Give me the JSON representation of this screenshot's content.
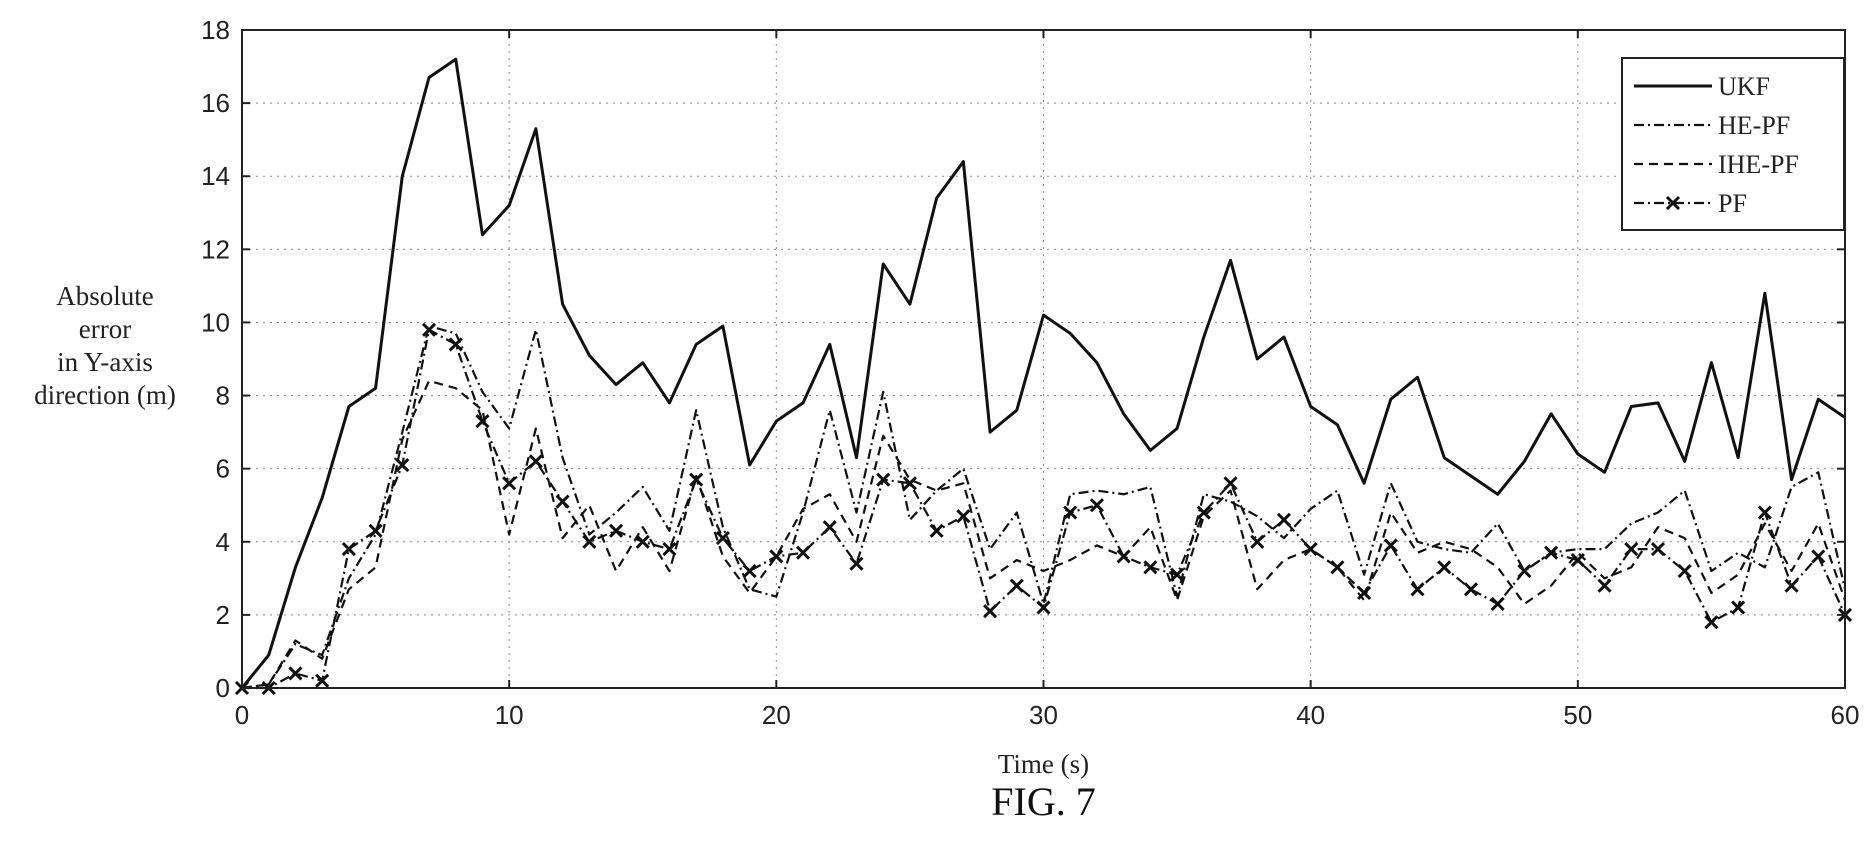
{
  "figure_caption": "FIG. 7",
  "chart_data": {
    "type": "line",
    "xlabel": "Time (s)",
    "ylabel": [
      "Absolute",
      "error",
      "in Y-axis",
      "direction (m)"
    ],
    "xlim": [
      0,
      60
    ],
    "ylim": [
      0,
      18
    ],
    "xticks": [
      0,
      10,
      20,
      30,
      40,
      50,
      60
    ],
    "yticks": [
      0,
      2,
      4,
      6,
      8,
      10,
      12,
      14,
      16,
      18
    ],
    "grid": true,
    "legend_position": "top-right",
    "x": [
      0,
      1,
      2,
      3,
      4,
      5,
      6,
      7,
      8,
      9,
      10,
      11,
      12,
      13,
      14,
      15,
      16,
      17,
      18,
      19,
      20,
      21,
      22,
      23,
      24,
      25,
      26,
      27,
      28,
      29,
      30,
      31,
      32,
      33,
      34,
      35,
      36,
      37,
      38,
      39,
      40,
      41,
      42,
      43,
      44,
      45,
      46,
      47,
      48,
      49,
      50,
      51,
      52,
      53,
      54,
      55,
      56,
      57,
      58,
      59,
      60
    ],
    "series": [
      {
        "name": "UKF",
        "style": "solid",
        "color": "#111111",
        "values": [
          0,
          0.9,
          3.3,
          5.2,
          7.7,
          8.2,
          14.0,
          16.7,
          17.2,
          12.4,
          13.2,
          15.3,
          10.5,
          9.1,
          8.3,
          8.9,
          7.8,
          9.4,
          9.9,
          6.1,
          7.3,
          7.8,
          9.4,
          6.3,
          11.6,
          10.5,
          13.4,
          14.4,
          7.0,
          7.6,
          10.2,
          9.7,
          8.9,
          7.5,
          6.5,
          7.1,
          9.6,
          11.7,
          9.0,
          9.6,
          7.7,
          7.2,
          5.6,
          7.9,
          8.5,
          6.3,
          5.8,
          5.3,
          6.2,
          7.5,
          6.4,
          5.9,
          7.7,
          7.8,
          6.2,
          8.9,
          6.3,
          10.8,
          5.7,
          7.9,
          7.4
        ]
      },
      {
        "name": "HE-PF",
        "style": "dashdot",
        "color": "#111111",
        "values": [
          0,
          0.1,
          1.2,
          0.9,
          3.0,
          4.2,
          7.0,
          9.9,
          9.7,
          8.1,
          7.1,
          9.8,
          6.3,
          4.2,
          4.8,
          5.5,
          4.3,
          7.6,
          4.4,
          2.7,
          2.5,
          4.8,
          7.6,
          4.8,
          8.1,
          4.6,
          5.4,
          6.0,
          3.8,
          4.8,
          2.3,
          5.3,
          5.4,
          5.3,
          5.5,
          2.5,
          5.3,
          5.1,
          4.7,
          4.1,
          4.9,
          5.4,
          3.1,
          5.6,
          4.0,
          3.8,
          3.7,
          4.5,
          3.2,
          3.7,
          3.8,
          3.8,
          4.5,
          4.8,
          5.4,
          3.2,
          3.7,
          3.3,
          5.5,
          5.9,
          2.7
        ]
      },
      {
        "name": "IHE-PF",
        "style": "dashed",
        "color": "#111111",
        "values": [
          0,
          0.1,
          1.3,
          0.8,
          2.7,
          3.3,
          6.8,
          8.4,
          8.2,
          7.6,
          4.2,
          7.1,
          4.1,
          5.0,
          3.2,
          4.4,
          3.2,
          5.8,
          3.6,
          2.6,
          3.6,
          4.9,
          5.3,
          4.0,
          6.9,
          5.7,
          5.4,
          5.6,
          3.0,
          3.5,
          3.2,
          3.5,
          3.9,
          3.6,
          4.4,
          2.4,
          4.7,
          5.4,
          2.7,
          3.5,
          3.8,
          3.3,
          2.4,
          4.8,
          3.7,
          4.0,
          3.8,
          3.3,
          2.3,
          2.8,
          3.7,
          3.0,
          3.3,
          4.4,
          4.1,
          2.6,
          3.1,
          4.5,
          3.2,
          4.5,
          2.4
        ]
      },
      {
        "name": "PF",
        "style": "dashdot-x",
        "color": "#111111",
        "values": [
          0,
          0.0,
          0.4,
          0.2,
          3.8,
          4.3,
          6.1,
          9.8,
          9.4,
          7.3,
          5.6,
          6.2,
          5.1,
          4.0,
          4.3,
          4.0,
          3.8,
          5.7,
          4.1,
          3.2,
          3.6,
          3.7,
          4.4,
          3.4,
          5.7,
          5.6,
          4.3,
          4.7,
          2.1,
          2.8,
          2.2,
          4.8,
          5.0,
          3.6,
          3.3,
          3.1,
          4.8,
          5.6,
          4.0,
          4.6,
          3.8,
          3.3,
          2.6,
          3.9,
          2.7,
          3.3,
          2.7,
          2.3,
          3.2,
          3.7,
          3.5,
          2.8,
          3.8,
          3.8,
          3.2,
          1.8,
          2.2,
          4.8,
          2.8,
          3.6,
          2.0
        ]
      }
    ]
  }
}
